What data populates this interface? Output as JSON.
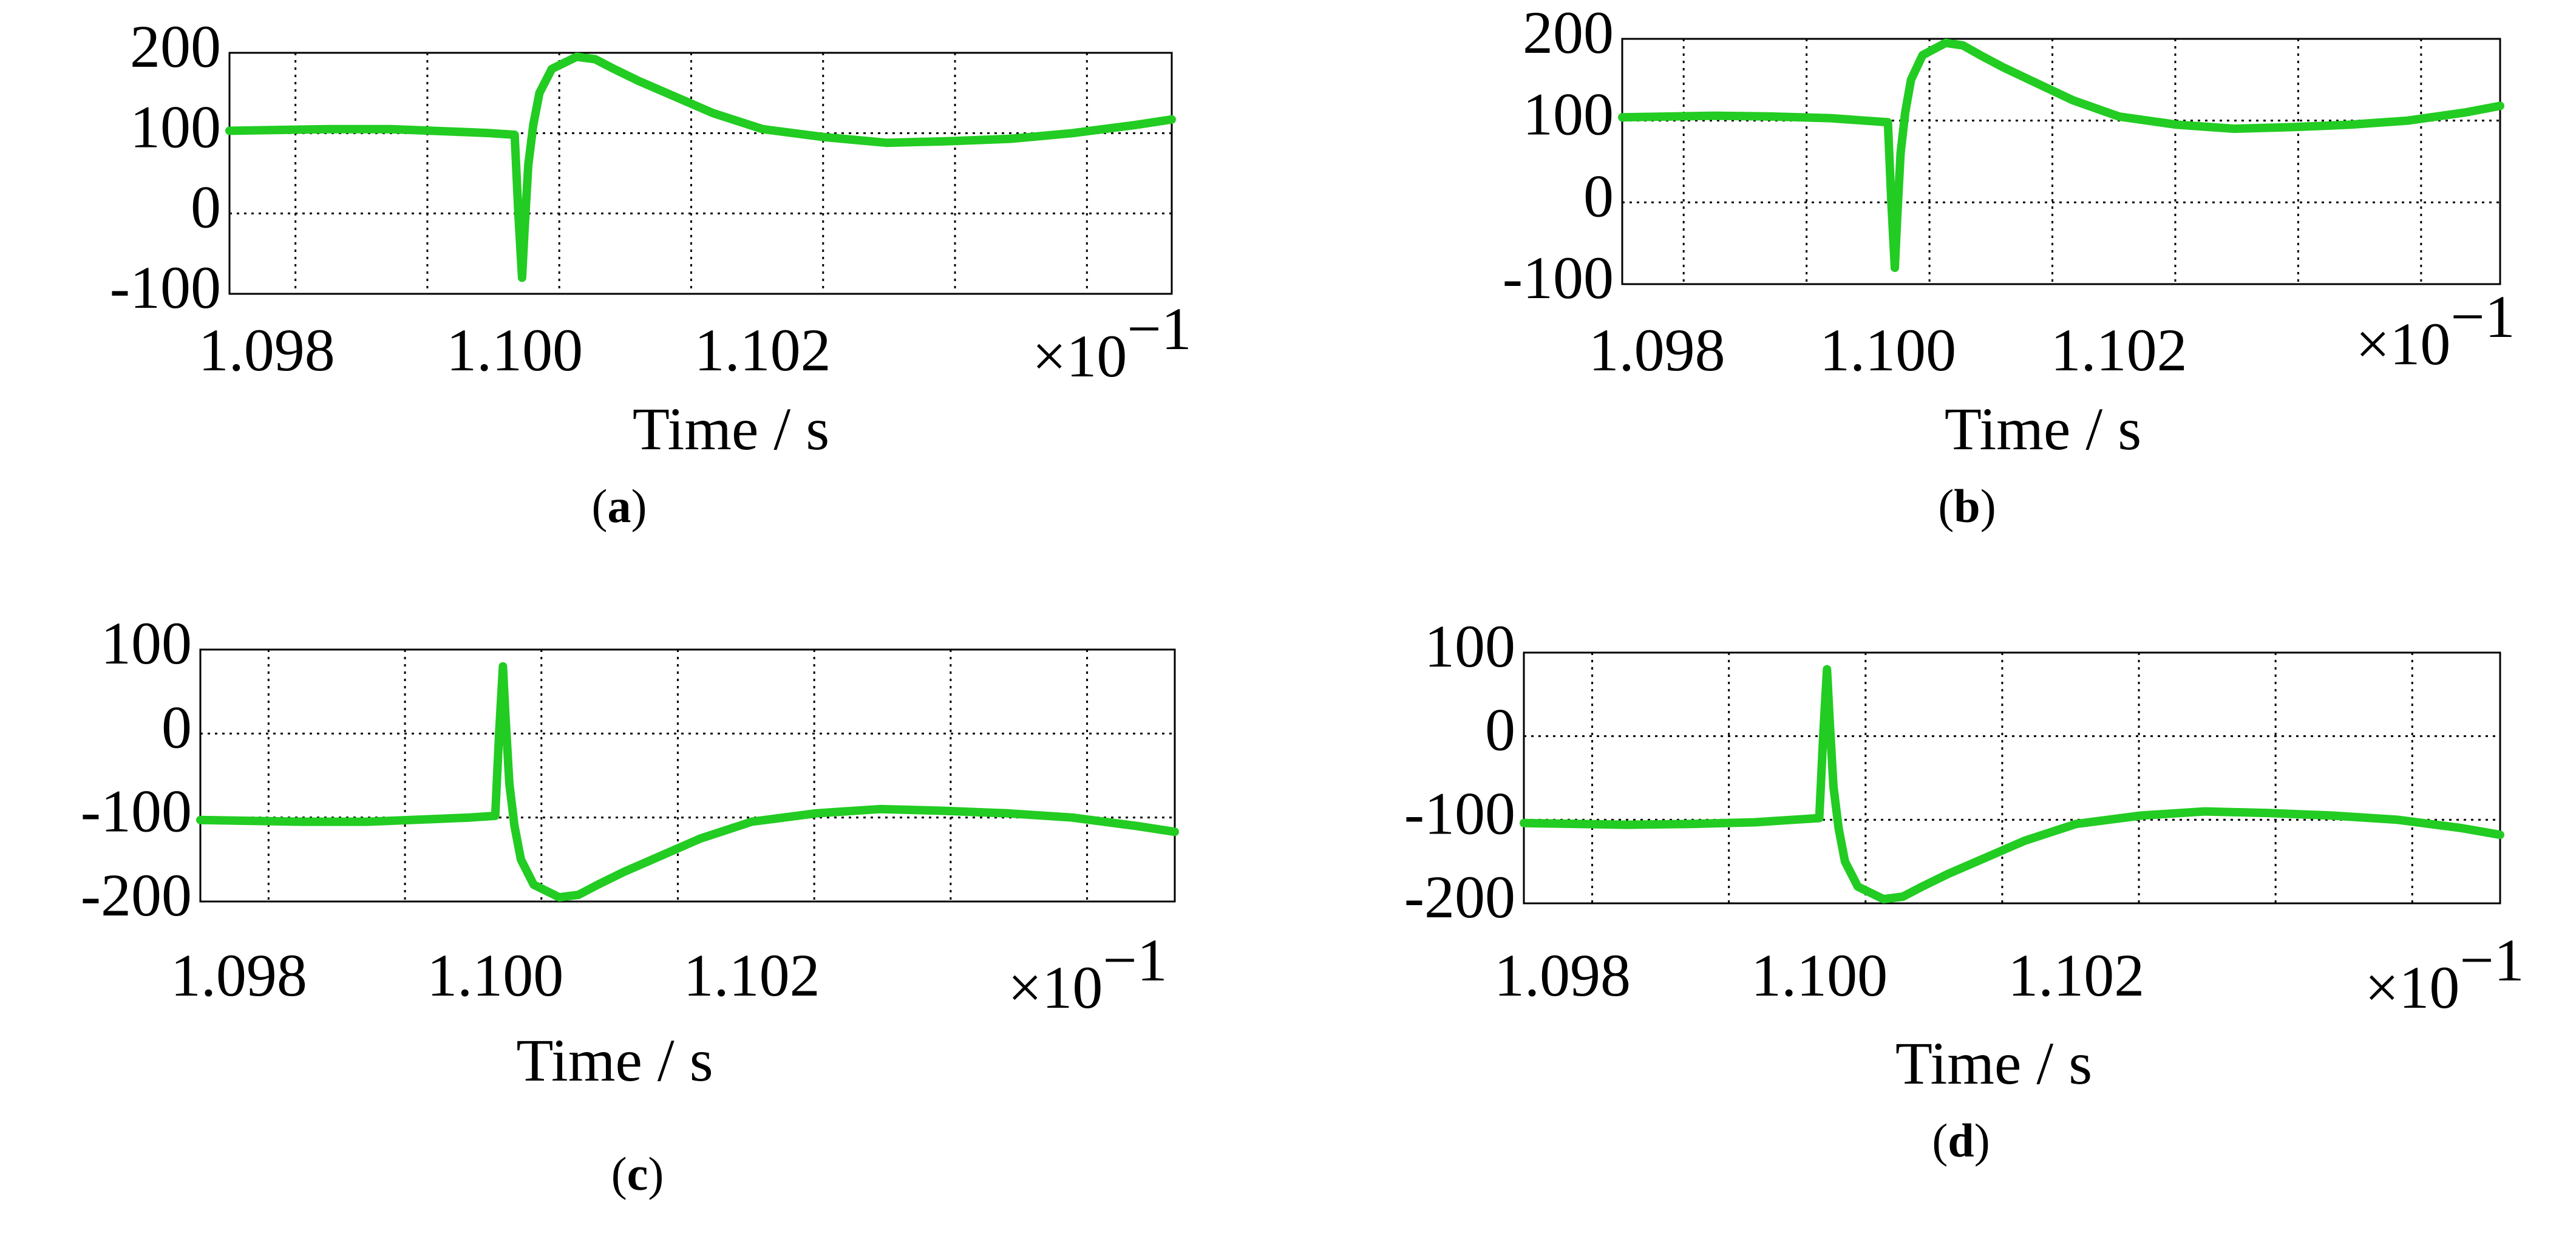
{
  "colors": {
    "series": "#22cc22",
    "grid": "#000000",
    "background": "#ffffff"
  },
  "chart_data": [
    {
      "panel": "a",
      "type": "line",
      "xlabel": "Time / s",
      "x_multiplier_label": "×10",
      "x_multiplier_exp": "−1",
      "xlim": [
        1.0977,
        1.1053
      ],
      "ylim": [
        -100,
        200
      ],
      "xticks": [
        "1.098",
        "1.100",
        "1.102"
      ],
      "yticks": [
        "200",
        "100",
        "0",
        "-100"
      ],
      "grid": true,
      "series": [
        {
          "x": [
            1.0977,
            1.0985,
            1.099,
            1.0995,
            1.0998,
            1.1,
            1.10003,
            1.10006,
            1.10008,
            1.10011,
            1.10015,
            1.1002,
            1.1003,
            1.1005,
            1.10065,
            1.1008,
            1.101,
            1.1013,
            1.1016,
            1.102,
            1.1025,
            1.103,
            1.1035,
            1.104,
            1.1045,
            1.105,
            1.1053
          ],
          "y": [
            103,
            105,
            105,
            102,
            100,
            98,
            0,
            -80,
            -20,
            60,
            110,
            150,
            180,
            195,
            192,
            180,
            165,
            145,
            125,
            105,
            95,
            88,
            90,
            93,
            100,
            110,
            117
          ]
        }
      ]
    },
    {
      "panel": "b",
      "type": "line",
      "xlabel": "Time / s",
      "x_multiplier_label": "×10",
      "x_multiplier_exp": "−1",
      "xlim": [
        1.0977,
        1.1053
      ],
      "ylim": [
        -100,
        200
      ],
      "xticks": [
        "1.098",
        "1.100",
        "1.102"
      ],
      "yticks": [
        "200",
        "100",
        "0",
        "-100"
      ],
      "grid": true,
      "series": [
        {
          "x": [
            1.0977,
            1.0985,
            1.099,
            1.0995,
            1.0998,
            1.1,
            1.10003,
            1.10006,
            1.10008,
            1.10011,
            1.10015,
            1.1002,
            1.1003,
            1.1005,
            1.10065,
            1.1008,
            1.101,
            1.1013,
            1.1016,
            1.102,
            1.1025,
            1.103,
            1.1035,
            1.104,
            1.1045,
            1.105,
            1.1053
          ],
          "y": [
            104,
            106,
            105,
            103,
            100,
            98,
            0,
            -80,
            -20,
            60,
            110,
            150,
            180,
            195,
            192,
            180,
            165,
            145,
            125,
            105,
            95,
            90,
            92,
            95,
            100,
            110,
            118
          ]
        }
      ]
    },
    {
      "panel": "c",
      "type": "line",
      "xlabel": "Time / s",
      "x_multiplier_label": "×10",
      "x_multiplier_exp": "−1",
      "xlim": [
        1.0977,
        1.1053
      ],
      "ylim": [
        -200,
        100
      ],
      "xticks": [
        "1.098",
        "1.100",
        "1.102"
      ],
      "yticks": [
        "100",
        "0",
        "-100",
        "-200"
      ],
      "grid": true,
      "series": [
        {
          "x": [
            1.0977,
            1.0985,
            1.099,
            1.0995,
            1.0998,
            1.1,
            1.10003,
            1.10006,
            1.10008,
            1.10011,
            1.10015,
            1.1002,
            1.1003,
            1.1005,
            1.10065,
            1.1008,
            1.101,
            1.1013,
            1.1016,
            1.102,
            1.1025,
            1.103,
            1.1035,
            1.104,
            1.1045,
            1.105,
            1.1053
          ],
          "y": [
            -103,
            -105,
            -105,
            -102,
            -100,
            -98,
            0,
            80,
            20,
            -60,
            -110,
            -150,
            -180,
            -195,
            -192,
            -180,
            -165,
            -145,
            -125,
            -105,
            -95,
            -90,
            -92,
            -95,
            -100,
            -110,
            -117
          ]
        }
      ]
    },
    {
      "panel": "d",
      "type": "line",
      "xlabel": "Time / s",
      "x_multiplier_label": "×10",
      "x_multiplier_exp": "−1",
      "xlim": [
        1.0977,
        1.1053
      ],
      "ylim": [
        -200,
        100
      ],
      "xticks": [
        "1.098",
        "1.100",
        "1.102"
      ],
      "yticks": [
        "100",
        "0",
        "-100",
        "-200"
      ],
      "grid": true,
      "series": [
        {
          "x": [
            1.0977,
            1.0985,
            1.099,
            1.0995,
            1.0998,
            1.1,
            1.10003,
            1.10006,
            1.10008,
            1.10011,
            1.10015,
            1.1002,
            1.1003,
            1.1005,
            1.10065,
            1.1008,
            1.101,
            1.1013,
            1.1016,
            1.102,
            1.1025,
            1.103,
            1.1035,
            1.104,
            1.1045,
            1.105,
            1.1053
          ],
          "y": [
            -104,
            -106,
            -105,
            -103,
            -100,
            -98,
            0,
            80,
            20,
            -60,
            -110,
            -150,
            -180,
            -195,
            -192,
            -180,
            -165,
            -145,
            -125,
            -105,
            -95,
            -90,
            -92,
            -95,
            -100,
            -110,
            -118
          ]
        }
      ]
    }
  ]
}
